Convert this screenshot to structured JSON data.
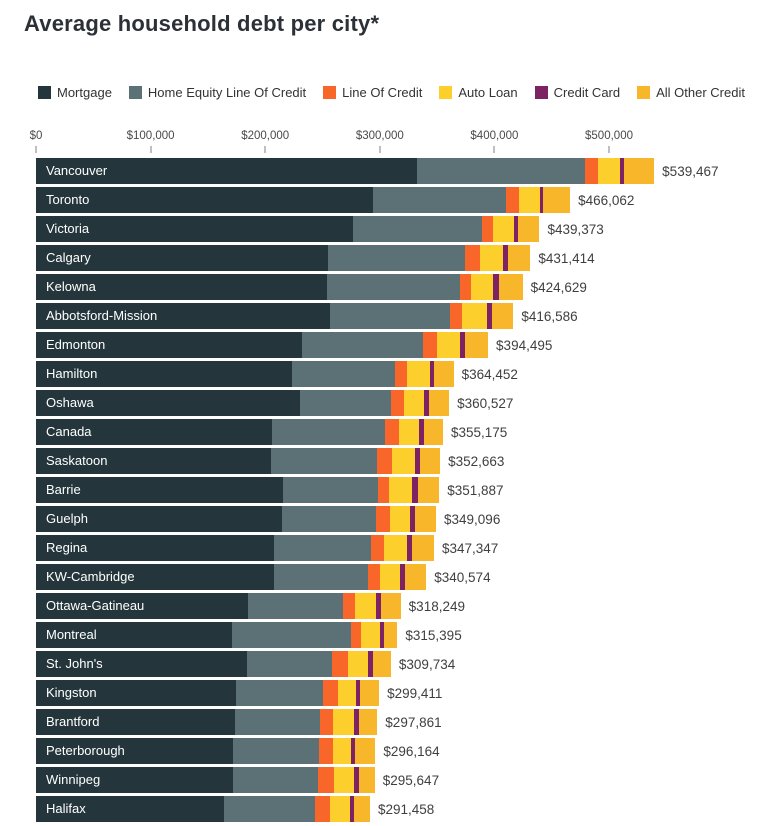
{
  "page": {
    "title": "Average household debt per city*"
  },
  "chart_data": {
    "type": "bar",
    "orientation": "horizontal",
    "stacked": true,
    "title": "Average household debt per city*",
    "legend_position": "top",
    "grid": false,
    "x_axis": {
      "tick_labels": [
        "$0",
        "$100,000",
        "$200,000",
        "$300,000",
        "$400,000",
        "$500,000"
      ],
      "tick_values": [
        0,
        100000,
        200000,
        300000,
        400000,
        500000
      ],
      "range": [
        0,
        560000
      ]
    },
    "categories": [
      "Vancouver",
      "Toronto",
      "Victoria",
      "Calgary",
      "Kelowna",
      "Abbotsford-Mission",
      "Edmonton",
      "Hamilton",
      "Oshawa",
      "Canada",
      "Saskatoon",
      "Barrie",
      "Guelph",
      "Regina",
      "KW-Cambridge",
      "Ottawa-Gatineau",
      "Montreal",
      "St. John's",
      "Kingston",
      "Brantford",
      "Peterborough",
      "Winnipeg",
      "Halifax"
    ],
    "totals": [
      539467,
      466062,
      439373,
      431414,
      424629,
      416586,
      394495,
      364452,
      360527,
      355175,
      352663,
      351887,
      349096,
      347347,
      340574,
      318249,
      315395,
      309734,
      299411,
      297861,
      296164,
      295647,
      291458
    ],
    "total_labels": [
      "$539,467",
      "$466,062",
      "$439,373",
      "$431,414",
      "$424,629",
      "$416,586",
      "$394,495",
      "$364,452",
      "$360,527",
      "$355,175",
      "$352,663",
      "$351,887",
      "$349,096",
      "$347,347",
      "$340,574",
      "$318,249",
      "$315,395",
      "$309,734",
      "$299,411",
      "$297,861",
      "$296,164",
      "$295,647",
      "$291,458"
    ],
    "series": [
      {
        "name": "Mortgage",
        "color": "#24363c",
        "values": [
          332500,
          294100,
          276600,
          254800,
          254000,
          256200,
          232100,
          223400,
          230000,
          205900,
          205300,
          215200,
          214600,
          207400,
          207400,
          184600,
          171000,
          184100,
          174800,
          173900,
          171900,
          171900,
          164300
        ]
      },
      {
        "name": "Home Equity Line Of Credit",
        "color": "#5b7175",
        "values": [
          146200,
          115700,
          112600,
          119800,
          115600,
          105300,
          105600,
          90100,
          79700,
          98300,
          92200,
          82900,
          82400,
          85200,
          82000,
          83300,
          104100,
          74200,
          75600,
          73600,
          74700,
          73900,
          79400
        ]
      },
      {
        "name": "Line Of Credit",
        "color": "#f9662a",
        "values": [
          11900,
          11300,
          9600,
          12500,
          10300,
          10200,
          12200,
          10200,
          11000,
          12200,
          13100,
          9600,
          11600,
          10700,
          10500,
          10700,
          8800,
          14000,
          12800,
          11300,
          12600,
          13900,
          13100
        ]
      },
      {
        "name": "Auto Loan",
        "color": "#fdcf2d",
        "values": [
          19200,
          18300,
          18000,
          20400,
          18900,
          21800,
          19700,
          19700,
          18100,
          17500,
          20400,
          20400,
          17400,
          20400,
          18000,
          18400,
          16000,
          17400,
          16300,
          19000,
          15700,
          17500,
          16900
        ]
      },
      {
        "name": "Credit Card",
        "color": "#7d2364",
        "values": [
          3500,
          3000,
          3500,
          4000,
          4800,
          4300,
          5000,
          3500,
          3800,
          4300,
          4300,
          4900,
          5000,
          4400,
          3800,
          4000,
          4100,
          4400,
          3500,
          3700,
          3700,
          4300,
          4100
        ]
      },
      {
        "name": "All Other Credit",
        "color": "#f8b62b",
        "values": [
          26167,
          23662,
          19073,
          19914,
          21029,
          18786,
          19895,
          17552,
          17927,
          16975,
          17363,
          18887,
          18096,
          19247,
          18874,
          17249,
          11395,
          15634,
          16411,
          16361,
          17564,
          14147,
          13658
        ]
      }
    ]
  }
}
